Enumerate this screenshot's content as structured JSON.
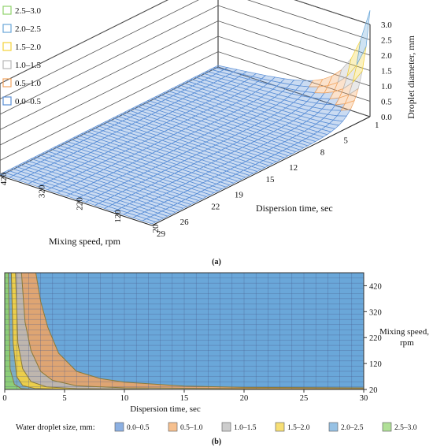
{
  "colors": {
    "r00_05": "#5b8fd6",
    "r05_10": "#f2a560",
    "r10_15": "#b8b8b8",
    "r15_20": "#f3d23a",
    "r20_25": "#6aa7d9",
    "r25_30": "#8fd36b"
  },
  "chart_data": [
    {
      "type": "surface3d",
      "panel_label": "(a)",
      "xlabel": "Dispersion time, sec",
      "ylabel": "Mixing speed, rpm",
      "zlabel": "Droplet diameter, mm",
      "x_ticks": [
        "1",
        "5",
        "8",
        "12",
        "15",
        "19",
        "22",
        "26",
        "29"
      ],
      "y_ticks": [
        "20",
        "120",
        "220",
        "320",
        "420"
      ],
      "z_ticks": [
        "0.0",
        "0.5",
        "1.0",
        "1.5",
        "2.0",
        "2.5",
        "3.0"
      ],
      "zlim": [
        0,
        3.0
      ],
      "legend": [
        "2.5–3.0",
        "2.0–2.5",
        "1.5–2.0",
        "1.0–1.5",
        "0.5–1.0",
        "0.0–0.5"
      ],
      "legend_position": "top-left"
    },
    {
      "type": "contour",
      "panel_label": "(b)",
      "xlabel": "Dispersion time, sec",
      "ylabel": "Mixing speed, rpm",
      "x_ticks": [
        "0",
        "5",
        "10",
        "15",
        "20",
        "25",
        "30"
      ],
      "y_ticks": [
        "20",
        "120",
        "220",
        "320",
        "420"
      ],
      "xlim": [
        0,
        30
      ],
      "ylim": [
        20,
        470
      ],
      "legend_title": "Water droplet size, mm:",
      "legend": [
        "0.0–0.5",
        "0.5–1.0",
        "1.0–1.5",
        "1.5–2.0",
        "2.0–2.5",
        "2.5–3.0"
      ],
      "legend_position": "bottom",
      "contours": [
        {
          "level": 0.5,
          "points": [
            [
              30,
              26
            ],
            [
              20,
              28
            ],
            [
              15,
              33
            ],
            [
              10,
              48
            ],
            [
              8,
              62
            ],
            [
              6,
              90
            ],
            [
              4.5,
              160
            ],
            [
              3.6,
              260
            ],
            [
              3.0,
              360
            ],
            [
              2.6,
              470
            ]
          ]
        },
        {
          "level": 1.0,
          "points": [
            [
              30,
              22
            ],
            [
              20,
              23
            ],
            [
              10,
              26
            ],
            [
              6,
              34
            ],
            [
              4,
              55
            ],
            [
              3,
              90
            ],
            [
              2.2,
              170
            ],
            [
              1.7,
              280
            ],
            [
              1.4,
              470
            ]
          ]
        },
        {
          "level": 1.5,
          "points": [
            [
              12,
              21
            ],
            [
              6,
              23
            ],
            [
              3.5,
              30
            ],
            [
              2.2,
              50
            ],
            [
              1.5,
              100
            ],
            [
              1.1,
              200
            ],
            [
              0.9,
              470
            ]
          ]
        },
        {
          "level": 2.0,
          "points": [
            [
              5,
              21
            ],
            [
              2.5,
              24
            ],
            [
              1.5,
              35
            ],
            [
              1.0,
              70
            ],
            [
              0.7,
              200
            ],
            [
              0.55,
              470
            ]
          ]
        },
        {
          "level": 2.5,
          "points": [
            [
              2.5,
              20
            ],
            [
              1.4,
              23
            ],
            [
              0.8,
              40
            ],
            [
              0.45,
              100
            ],
            [
              0.3,
              470
            ]
          ]
        }
      ]
    }
  ]
}
